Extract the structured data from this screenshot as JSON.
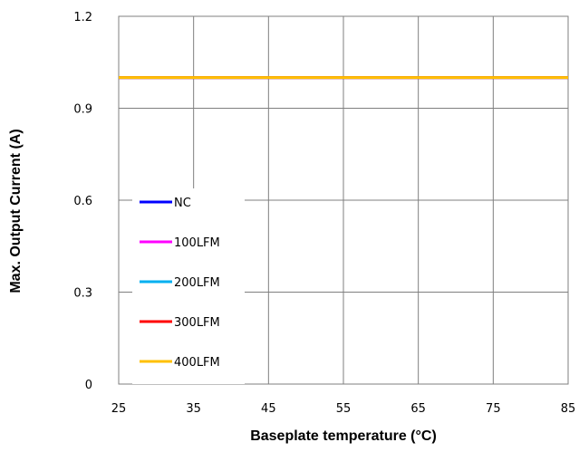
{
  "chart_data": {
    "type": "line",
    "title": "",
    "xlabel": "Baseplate temperature (°C)",
    "ylabel": "Max. Output Current (A)",
    "xlim": [
      25,
      85
    ],
    "ylim": [
      0,
      1.2
    ],
    "x_ticks": [
      "25",
      "35",
      "45",
      "55",
      "65",
      "75",
      "85"
    ],
    "y_ticks": [
      "0",
      "0.3",
      "0.6",
      "0.9",
      "1.2"
    ],
    "grid": true,
    "legend_position": "lower-left",
    "x": [
      25,
      85
    ],
    "series": [
      {
        "name": "NC",
        "color": "#0000ff",
        "values": [
          1.0,
          1.0
        ]
      },
      {
        "name": "100LFM",
        "color": "#ff00ff",
        "values": [
          1.0,
          1.0
        ]
      },
      {
        "name": "200LFM",
        "color": "#00b0f0",
        "values": [
          1.0,
          1.0
        ]
      },
      {
        "name": "300LFM",
        "color": "#ff0000",
        "values": [
          1.0,
          1.0
        ]
      },
      {
        "name": "400LFM",
        "color": "#ffc000",
        "values": [
          1.0,
          1.0
        ]
      }
    ]
  }
}
